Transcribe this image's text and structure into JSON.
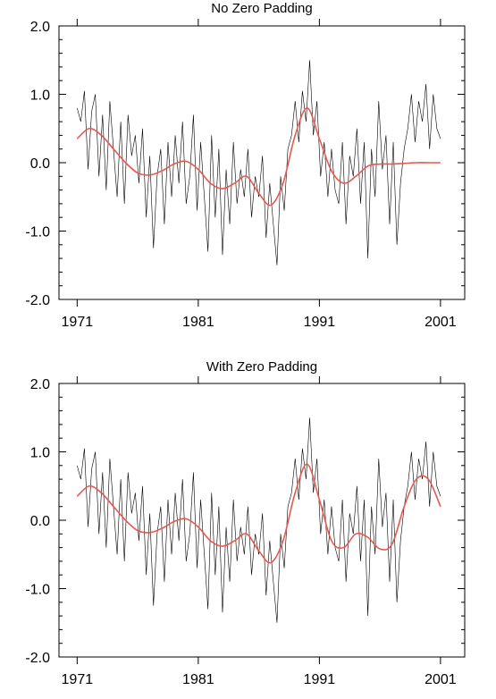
{
  "chart_data": [
    {
      "type": "line",
      "title": "No Zero Padding",
      "xlabel": "",
      "ylabel": "",
      "xlim": [
        1969.5,
        2003.0
      ],
      "ylim": [
        -2.0,
        2.0
      ],
      "x_ticks": [
        1971,
        1981,
        1991,
        2001
      ],
      "x_tick_labels": [
        "1971",
        "1981",
        "1991",
        "2001"
      ],
      "y_ticks": [
        -2.0,
        -1.0,
        0.0,
        1.0,
        2.0
      ],
      "y_tick_labels": [
        "-2.0",
        "-1.0",
        "0.0",
        "1.0",
        "2.0"
      ],
      "grid": false,
      "series": [
        {
          "color": "#000000",
          "style": "thin",
          "x": [
            1971.0,
            1971.3,
            1971.6,
            1971.9,
            1972.2,
            1972.5,
            1972.8,
            1973.1,
            1973.4,
            1973.7,
            1974.0,
            1974.3,
            1974.6,
            1974.9,
            1975.2,
            1975.5,
            1975.8,
            1976.1,
            1976.4,
            1976.7,
            1977.0,
            1977.3,
            1977.6,
            1977.9,
            1978.2,
            1978.5,
            1978.8,
            1979.1,
            1979.4,
            1979.7,
            1980.0,
            1980.3,
            1980.6,
            1980.9,
            1981.2,
            1981.5,
            1981.8,
            1982.1,
            1982.4,
            1982.7,
            1983.0,
            1983.3,
            1983.6,
            1983.9,
            1984.2,
            1984.5,
            1984.8,
            1985.1,
            1985.4,
            1985.7,
            1986.0,
            1986.3,
            1986.6,
            1986.9,
            1987.2,
            1987.5,
            1987.8,
            1988.1,
            1988.4,
            1988.7,
            1989.0,
            1989.3,
            1989.6,
            1989.9,
            1990.2,
            1990.5,
            1990.8,
            1991.1,
            1991.4,
            1991.7,
            1992.0,
            1992.3,
            1992.6,
            1992.9,
            1993.2,
            1993.5,
            1993.8,
            1994.1,
            1994.4,
            1994.7,
            1995.0,
            1995.3,
            1995.6,
            1995.9,
            1996.2,
            1996.5,
            1996.8,
            1997.1,
            1997.4,
            1997.7,
            1998.0,
            1998.3,
            1998.6,
            1998.9,
            1999.2,
            1999.5,
            1999.8,
            2000.1,
            2000.4,
            2000.7,
            2001.0
          ],
          "values": [
            0.8,
            0.6,
            1.05,
            -0.1,
            0.75,
            1.0,
            -0.2,
            0.7,
            -0.4,
            0.9,
            0.2,
            -0.5,
            0.6,
            -0.6,
            0.7,
            0.1,
            0.4,
            -0.3,
            0.5,
            -0.8,
            0.1,
            -1.25,
            -0.2,
            0.2,
            -0.9,
            0.3,
            -0.5,
            0.4,
            -0.3,
            0.6,
            -0.6,
            -0.2,
            0.7,
            -0.7,
            0.3,
            -0.5,
            -1.3,
            0.4,
            -0.8,
            0.2,
            -1.35,
            -0.1,
            -0.9,
            0.3,
            -0.6,
            -0.1,
            -0.5,
            0.2,
            -0.8,
            -0.2,
            -0.5,
            0.1,
            -1.1,
            -0.3,
            -0.9,
            -1.5,
            -0.2,
            -0.7,
            0.2,
            0.4,
            0.9,
            0.3,
            1.05,
            0.6,
            1.5,
            0.4,
            0.9,
            -0.2,
            0.3,
            -0.5,
            0.2,
            -0.4,
            -0.6,
            0.3,
            -0.9,
            0.1,
            -0.2,
            0.5,
            -0.6,
            0.3,
            -1.4,
            0.2,
            -0.5,
            0.9,
            -0.1,
            0.4,
            -0.9,
            0.3,
            -1.2,
            -0.3,
            0.2,
            0.5,
            1.0,
            0.3,
            0.9,
            0.6,
            1.15,
            0.2,
            1.0,
            0.5,
            0.35
          ]
        },
        {
          "color": "#e8584e",
          "style": "smooth",
          "x": [
            1971.0,
            1972.0,
            1973.0,
            1974.0,
            1975.0,
            1976.0,
            1977.0,
            1978.0,
            1979.0,
            1980.0,
            1981.0,
            1982.0,
            1983.0,
            1984.0,
            1985.0,
            1986.0,
            1987.0,
            1988.0,
            1989.0,
            1990.0,
            1991.0,
            1992.0,
            1993.0,
            1994.0,
            1995.0,
            1996.0,
            1997.0,
            1998.0,
            1999.0,
            2000.0,
            2001.0
          ],
          "values": [
            0.35,
            0.5,
            0.4,
            0.2,
            0.0,
            -0.15,
            -0.18,
            -0.12,
            -0.02,
            0.02,
            -0.1,
            -0.3,
            -0.38,
            -0.3,
            -0.2,
            -0.45,
            -0.62,
            -0.3,
            0.4,
            0.8,
            0.35,
            -0.12,
            -0.3,
            -0.2,
            -0.05,
            -0.02,
            -0.02,
            -0.01,
            0.0,
            0.0,
            0.0
          ]
        }
      ]
    },
    {
      "type": "line",
      "title": "With Zero Padding",
      "xlabel": "",
      "ylabel": "",
      "xlim": [
        1969.5,
        2003.0
      ],
      "ylim": [
        -2.0,
        2.0
      ],
      "x_ticks": [
        1971,
        1981,
        1991,
        2001
      ],
      "x_tick_labels": [
        "1971",
        "1981",
        "1991",
        "2001"
      ],
      "y_ticks": [
        -2.0,
        -1.0,
        0.0,
        1.0,
        2.0
      ],
      "y_tick_labels": [
        "-2.0",
        "-1.0",
        "0.0",
        "1.0",
        "2.0"
      ],
      "grid": false,
      "series": [
        {
          "color": "#000000",
          "style": "thin",
          "x": [
            1971.0,
            1971.3,
            1971.6,
            1971.9,
            1972.2,
            1972.5,
            1972.8,
            1973.1,
            1973.4,
            1973.7,
            1974.0,
            1974.3,
            1974.6,
            1974.9,
            1975.2,
            1975.5,
            1975.8,
            1976.1,
            1976.4,
            1976.7,
            1977.0,
            1977.3,
            1977.6,
            1977.9,
            1978.2,
            1978.5,
            1978.8,
            1979.1,
            1979.4,
            1979.7,
            1980.0,
            1980.3,
            1980.6,
            1980.9,
            1981.2,
            1981.5,
            1981.8,
            1982.1,
            1982.4,
            1982.7,
            1983.0,
            1983.3,
            1983.6,
            1983.9,
            1984.2,
            1984.5,
            1984.8,
            1985.1,
            1985.4,
            1985.7,
            1986.0,
            1986.3,
            1986.6,
            1986.9,
            1987.2,
            1987.5,
            1987.8,
            1988.1,
            1988.4,
            1988.7,
            1989.0,
            1989.3,
            1989.6,
            1989.9,
            1990.2,
            1990.5,
            1990.8,
            1991.1,
            1991.4,
            1991.7,
            1992.0,
            1992.3,
            1992.6,
            1992.9,
            1993.2,
            1993.5,
            1993.8,
            1994.1,
            1994.4,
            1994.7,
            1995.0,
            1995.3,
            1995.6,
            1995.9,
            1996.2,
            1996.5,
            1996.8,
            1997.1,
            1997.4,
            1997.7,
            1998.0,
            1998.3,
            1998.6,
            1998.9,
            1999.2,
            1999.5,
            1999.8,
            2000.1,
            2000.4,
            2000.7,
            2001.0
          ],
          "values": [
            0.8,
            0.6,
            1.05,
            -0.1,
            0.75,
            1.0,
            -0.2,
            0.7,
            -0.4,
            0.9,
            0.2,
            -0.5,
            0.6,
            -0.6,
            0.7,
            0.1,
            0.4,
            -0.3,
            0.5,
            -0.8,
            0.1,
            -1.25,
            -0.2,
            0.2,
            -0.9,
            0.3,
            -0.5,
            0.4,
            -0.3,
            0.6,
            -0.6,
            -0.2,
            0.7,
            -0.7,
            0.3,
            -0.5,
            -1.3,
            0.4,
            -0.8,
            0.2,
            -1.35,
            -0.1,
            -0.9,
            0.3,
            -0.6,
            -0.1,
            -0.5,
            0.2,
            -0.8,
            -0.2,
            -0.5,
            0.1,
            -1.1,
            -0.3,
            -0.9,
            -1.5,
            -0.2,
            -0.7,
            0.2,
            0.4,
            0.9,
            0.3,
            1.05,
            0.6,
            1.5,
            0.4,
            0.9,
            -0.2,
            0.3,
            -0.5,
            0.2,
            -0.4,
            -0.6,
            0.3,
            -0.9,
            0.1,
            -0.2,
            0.5,
            -0.6,
            0.3,
            -1.4,
            0.2,
            -0.5,
            0.9,
            -0.1,
            0.4,
            -0.9,
            0.3,
            -1.2,
            -0.3,
            0.2,
            0.5,
            1.0,
            0.3,
            0.9,
            0.6,
            1.15,
            0.2,
            1.0,
            0.5,
            0.35
          ]
        },
        {
          "color": "#e8584e",
          "style": "smooth",
          "x": [
            1971.0,
            1972.0,
            1973.0,
            1974.0,
            1975.0,
            1976.0,
            1977.0,
            1978.0,
            1979.0,
            1980.0,
            1981.0,
            1982.0,
            1983.0,
            1984.0,
            1985.0,
            1986.0,
            1987.0,
            1988.0,
            1989.0,
            1990.0,
            1991.0,
            1992.0,
            1993.0,
            1994.0,
            1995.0,
            1996.0,
            1997.0,
            1998.0,
            1999.0,
            2000.0,
            2001.0
          ],
          "values": [
            0.35,
            0.5,
            0.4,
            0.2,
            0.0,
            -0.15,
            -0.18,
            -0.12,
            -0.02,
            0.02,
            -0.1,
            -0.3,
            -0.38,
            -0.3,
            -0.2,
            -0.45,
            -0.62,
            -0.3,
            0.4,
            0.82,
            0.3,
            -0.3,
            -0.4,
            -0.2,
            -0.25,
            -0.42,
            -0.35,
            0.2,
            0.6,
            0.6,
            0.2
          ]
        }
      ]
    }
  ]
}
